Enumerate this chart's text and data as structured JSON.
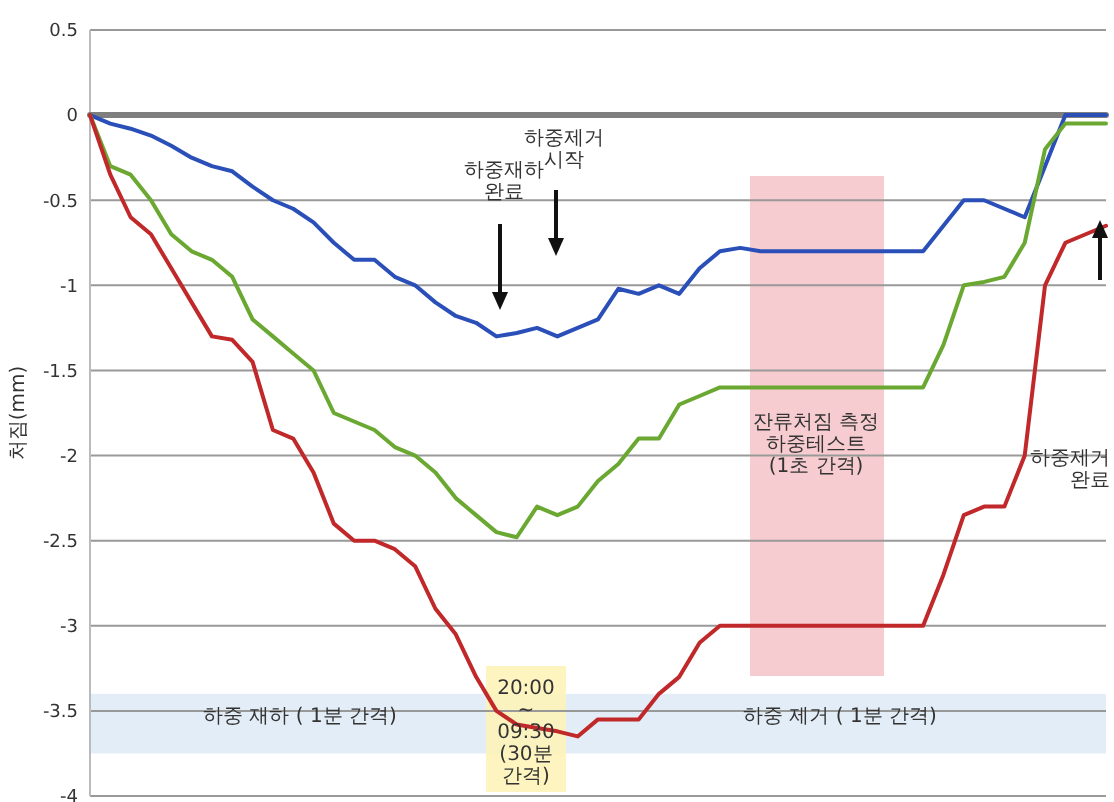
{
  "chart_data": {
    "type": "line",
    "ylabel": "처짐(mm)",
    "ylim": [
      -4,
      0.5
    ],
    "yticks": [
      0.5,
      0,
      -0.5,
      -1,
      -1.5,
      -2,
      -2.5,
      -3,
      -3.5,
      -4
    ],
    "grid": "y",
    "marker": "none",
    "line_style": "solid",
    "categories": [
      null,
      null,
      null,
      null,
      null,
      null,
      null,
      null,
      null,
      null,
      null,
      null,
      null,
      null,
      null,
      null,
      null,
      null,
      null,
      null,
      null,
      null,
      null,
      null,
      null,
      null,
      null,
      null,
      null,
      null,
      null,
      null,
      null,
      null,
      null,
      null,
      null,
      null,
      null,
      null,
      null,
      null,
      null,
      null,
      null,
      null,
      null,
      null,
      null,
      null,
      null
    ],
    "series": [
      {
        "color": "#7f7f7f",
        "values": [
          0,
          0,
          0,
          0,
          0,
          0,
          0,
          0,
          0,
          0,
          0,
          0,
          0,
          0,
          0,
          0,
          0,
          0,
          0,
          0,
          0,
          0,
          0,
          0,
          0,
          0,
          0,
          0,
          0,
          0,
          0,
          0,
          0,
          0,
          0,
          0,
          0,
          0,
          0,
          0,
          0,
          0,
          0,
          0,
          0,
          0,
          0,
          0,
          0,
          0,
          0
        ]
      },
      {
        "color": "#2a4fb8",
        "values": [
          0,
          -0.05,
          -0.08,
          -0.12,
          -0.18,
          -0.25,
          -0.3,
          -0.33,
          -0.42,
          -0.5,
          -0.55,
          -0.63,
          -0.75,
          -0.85,
          -0.85,
          -0.95,
          -1.0,
          -1.1,
          -1.18,
          -1.22,
          -1.3,
          -1.28,
          -1.25,
          -1.3,
          -1.25,
          -1.2,
          -1.02,
          -1.05,
          -1.0,
          -1.05,
          -0.9,
          -0.8,
          -0.78,
          -0.8,
          -0.8,
          -0.8,
          -0.8,
          -0.8,
          -0.8,
          -0.8,
          -0.8,
          -0.8,
          -0.65,
          -0.5,
          -0.5,
          -0.55,
          -0.6,
          -0.3,
          0,
          0,
          0
        ]
      },
      {
        "color": "#6aa832",
        "values": [
          0,
          -0.3,
          -0.35,
          -0.5,
          -0.7,
          -0.8,
          -0.85,
          -0.95,
          -1.2,
          -1.3,
          -1.4,
          -1.5,
          -1.75,
          -1.8,
          -1.85,
          -1.95,
          -2.0,
          -2.1,
          -2.25,
          -2.35,
          -2.45,
          -2.48,
          -2.3,
          -2.35,
          -2.3,
          -2.15,
          -2.05,
          -1.9,
          -1.9,
          -1.7,
          -1.65,
          -1.6,
          -1.6,
          -1.6,
          -1.6,
          -1.6,
          -1.6,
          -1.6,
          -1.6,
          -1.6,
          -1.6,
          -1.6,
          -1.35,
          -1.0,
          -0.98,
          -0.95,
          -0.75,
          -0.2,
          -0.05,
          -0.05,
          -0.05
        ]
      },
      {
        "color": "#c0282a",
        "values": [
          0,
          -0.35,
          -0.6,
          -0.7,
          -0.9,
          -1.1,
          -1.3,
          -1.32,
          -1.45,
          -1.85,
          -1.9,
          -2.1,
          -2.4,
          -2.5,
          -2.5,
          -2.55,
          -2.65,
          -2.9,
          -3.05,
          -3.3,
          -3.5,
          -3.58,
          -3.6,
          -3.62,
          -3.65,
          -3.55,
          -3.55,
          -3.55,
          -3.4,
          -3.3,
          -3.1,
          -3.0,
          -3.0,
          -3.0,
          -3.0,
          -3.0,
          -3.0,
          -3.0,
          -3.0,
          -3.0,
          -3.0,
          -3.0,
          -2.7,
          -2.35,
          -2.3,
          -2.3,
          -2.0,
          -1.0,
          -0.75,
          -0.7,
          -0.65
        ]
      }
    ],
    "bands": [
      {
        "axis": "y",
        "from": -3.4,
        "to": -3.75,
        "color": "#dce9f5"
      }
    ],
    "annotations": [
      "하중재하\n완료",
      "하중제거\n시작",
      "하중제거\n완료",
      "하중 재하 ( 1분 간격)",
      "하중 제거 ( 1분 간격)",
      "20:00\n~\n09:30\n(30분\n간격)",
      "잔류처짐 측정\n하중테스트\n(1초 간격)"
    ]
  }
}
